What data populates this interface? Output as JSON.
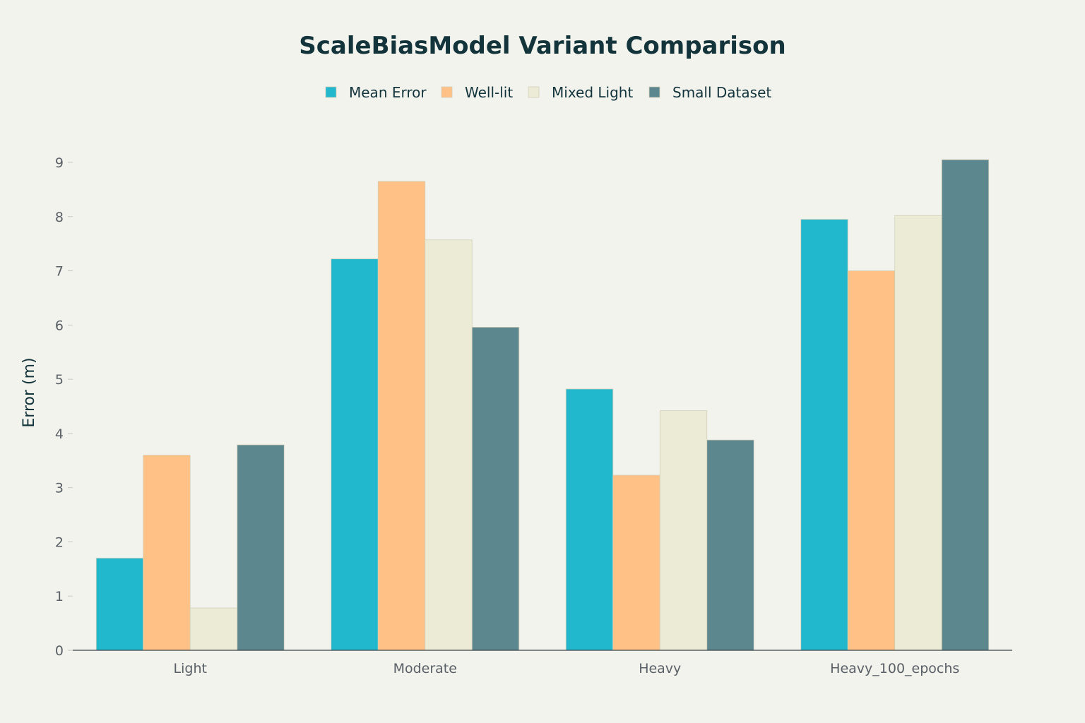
{
  "chart_data": {
    "type": "bar",
    "title": "ScaleBiasModel Variant Comparison",
    "xlabel": "",
    "ylabel": "Error (m)",
    "categories": [
      "Light",
      "Moderate",
      "Heavy",
      "Heavy_100_epochs"
    ],
    "series": [
      {
        "name": "Mean Error",
        "color": "#21b8cd",
        "values": [
          1.7,
          7.22,
          4.82,
          7.95
        ]
      },
      {
        "name": "Well-lit",
        "color": "#ffc185",
        "values": [
          3.6,
          8.65,
          3.23,
          7.0
        ]
      },
      {
        "name": "Mixed Light",
        "color": "#ecebd5",
        "values": [
          0.78,
          7.57,
          4.42,
          8.02
        ]
      },
      {
        "name": "Small Dataset",
        "color": "#5d878f",
        "values": [
          3.79,
          5.96,
          3.88,
          9.05
        ]
      }
    ],
    "ylim": [
      0,
      9.3
    ],
    "yticks": [
      0,
      1,
      2,
      3,
      4,
      5,
      6,
      7,
      8,
      9
    ],
    "grid": false,
    "legend_position": "top-center"
  }
}
